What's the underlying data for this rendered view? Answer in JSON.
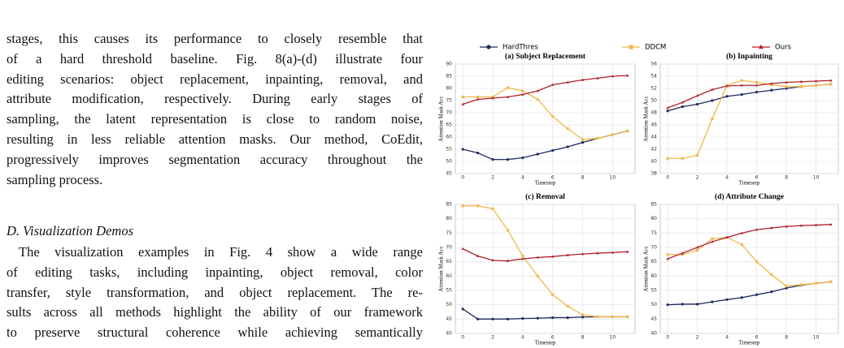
{
  "text": {
    "paragraph1": [
      "stages, this causes its performance to closely resemble that",
      "of a hard threshold baseline. Fig. 8(a)-(d) illustrate four",
      "editing scenarios: object replacement, inpainting, removal, and",
      "attribute modification, respectively. During early stages of",
      "sampling, the latent representation is close to random noise,",
      "resulting in less reliable attention masks. Our method, CoEdit,",
      "progressively improves segmentation accuracy throughout the",
      "sampling process."
    ],
    "heading": "D. Visualization Demos",
    "paragraph2": [
      "The visualization examples in Fig. 4 show a wide range",
      "of editing tasks, including inpainting, object removal, color",
      "transfer, style transformation, and object replacement. The re-",
      "sults across all methods highlight the ability of our framework",
      "to preserve structural coherence while achieving semantically"
    ]
  },
  "chart_data": [
    {
      "type": "line",
      "title": "(a) Subject Replacement",
      "xlabel": "Timestep",
      "ylabel": "Attention Mask Acc",
      "grid": true,
      "x": [
        0,
        1,
        2,
        3,
        4,
        5,
        6,
        7,
        8,
        9,
        10,
        11
      ],
      "xlim": [
        -0.5,
        11.5
      ],
      "xticks": [
        0,
        2,
        4,
        6,
        8,
        10
      ],
      "ylim": [
        45,
        90
      ],
      "yticks": [
        45,
        50,
        55,
        60,
        65,
        70,
        75,
        80,
        85,
        90
      ],
      "series": [
        {
          "name": "HardThres",
          "color": "#1f2a5c",
          "marker": "circle",
          "values": [
            55,
            53.5,
            50.8,
            50.8,
            51.5,
            53,
            54.5,
            56,
            57.8,
            59.5,
            61,
            62.5
          ]
        },
        {
          "name": "DDCM",
          "color": "#f2b84b",
          "marker": "square",
          "values": [
            76.5,
            76.5,
            76.5,
            80.3,
            79,
            75.5,
            68.5,
            63.5,
            59,
            59.5,
            61,
            62.5
          ]
        },
        {
          "name": "Ours",
          "color": "#b0202a",
          "marker": "triangle",
          "values": [
            73.5,
            75.5,
            76,
            76.5,
            77.5,
            79,
            81.5,
            82.5,
            83.5,
            84.2,
            85,
            85.3
          ]
        }
      ]
    },
    {
      "type": "line",
      "title": "(b) Inpainting",
      "xlabel": "Timestep",
      "ylabel": "Attention Mask Acc",
      "grid": true,
      "x": [
        0,
        1,
        2,
        3,
        4,
        5,
        6,
        7,
        8,
        9,
        10,
        11
      ],
      "xlim": [
        -0.5,
        11.5
      ],
      "xticks": [
        0,
        2,
        4,
        6,
        8,
        10
      ],
      "ylim": [
        38,
        56
      ],
      "yticks": [
        38,
        40,
        42,
        44,
        46,
        48,
        50,
        52,
        54,
        56
      ],
      "series": [
        {
          "color": "#1f2a5c",
          "marker": "circle",
          "values": [
            48.3,
            49,
            49.4,
            50,
            50.7,
            51,
            51.4,
            51.7,
            52,
            52.3,
            52.5,
            52.7
          ]
        },
        {
          "color": "#f2b84b",
          "marker": "square",
          "values": [
            40.5,
            40.5,
            41,
            47,
            52.5,
            53.3,
            53,
            52.6,
            52.3,
            52.3,
            52.5,
            52.7
          ]
        },
        {
          "color": "#b0202a",
          "marker": "triangle",
          "values": [
            48.8,
            49.7,
            50.8,
            51.8,
            52.4,
            52.5,
            52.5,
            52.8,
            53,
            53.1,
            53.2,
            53.3
          ]
        }
      ]
    },
    {
      "type": "line",
      "title": "(c) Removal",
      "xlabel": "Timestep",
      "ylabel": "Attention Mask Acc",
      "grid": true,
      "x": [
        0,
        1,
        2,
        3,
        4,
        5,
        6,
        7,
        8,
        9,
        10,
        11
      ],
      "xlim": [
        -0.5,
        11.5
      ],
      "xticks": [
        0,
        2,
        4,
        6,
        8,
        10
      ],
      "ylim": [
        40,
        85
      ],
      "yticks": [
        40,
        45,
        50,
        55,
        60,
        65,
        70,
        75,
        80,
        85
      ],
      "series": [
        {
          "color": "#1f2a5c",
          "marker": "circle",
          "values": [
            48.5,
            45,
            45,
            45,
            45.2,
            45.3,
            45.5,
            45.5,
            45.7,
            45.8,
            45.8,
            45.8
          ]
        },
        {
          "color": "#f2b84b",
          "marker": "square",
          "values": [
            84.5,
            84.5,
            83.5,
            76,
            67,
            60,
            53.5,
            49.5,
            46.5,
            45.8,
            45.8,
            45.8
          ]
        },
        {
          "color": "#b0202a",
          "marker": "triangle",
          "values": [
            69.5,
            67,
            65.5,
            65.3,
            66,
            66.5,
            66.8,
            67.3,
            67.7,
            68,
            68.2,
            68.5
          ]
        }
      ]
    },
    {
      "type": "line",
      "title": "(d) Attribute Change",
      "xlabel": "Timestep",
      "ylabel": "Attention Mask Acc",
      "grid": true,
      "x": [
        0,
        1,
        2,
        3,
        4,
        5,
        6,
        7,
        8,
        9,
        10,
        11
      ],
      "xlim": [
        -0.5,
        11.5
      ],
      "xticks": [
        0,
        2,
        4,
        6,
        8,
        10
      ],
      "ylim": [
        40,
        85
      ],
      "yticks": [
        40,
        45,
        50,
        55,
        60,
        65,
        70,
        75,
        80,
        85
      ],
      "series": [
        {
          "color": "#1f2a5c",
          "marker": "circle",
          "values": [
            50,
            50.2,
            50.2,
            51,
            51.8,
            52.5,
            53.5,
            54.5,
            55.8,
            56.8,
            57.5,
            58
          ]
        },
        {
          "color": "#f2b84b",
          "marker": "square",
          "values": [
            67.5,
            67.5,
            69,
            73,
            73.5,
            71,
            65,
            60.5,
            56.5,
            57,
            57.5,
            58
          ]
        },
        {
          "color": "#b0202a",
          "marker": "triangle",
          "values": [
            66,
            68,
            70,
            72,
            73.5,
            75,
            76.2,
            76.8,
            77.3,
            77.6,
            77.8,
            78
          ]
        }
      ]
    }
  ]
}
